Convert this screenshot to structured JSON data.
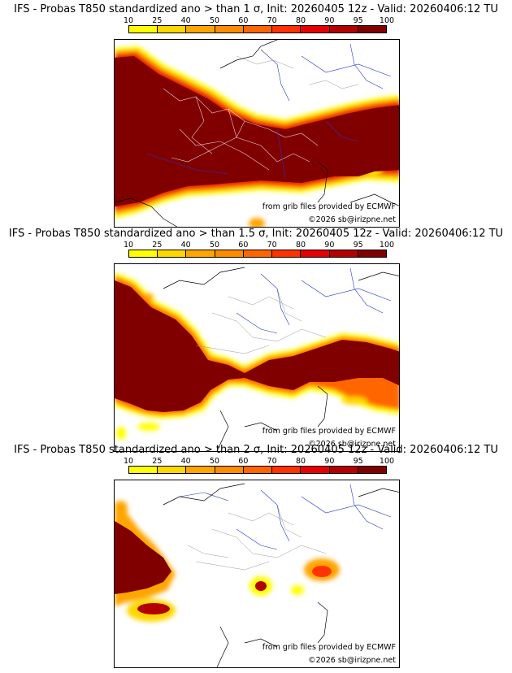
{
  "colorbar": {
    "ticks": [
      "10",
      "25",
      "40",
      "50",
      "60",
      "70",
      "80",
      "90",
      "95",
      "100"
    ],
    "colors": [
      "#ffff00",
      "#ffd700",
      "#ffa500",
      "#ff8c00",
      "#ff6600",
      "#ff3300",
      "#e60000",
      "#b30000",
      "#800000"
    ]
  },
  "credits": {
    "source": "from grib files provided by ECMWF",
    "copyright": "©2026 sb@irizpne.net"
  },
  "panels": [
    {
      "title": "IFS - Probas T850  standardized ano > than 1 σ, Init: 20260405 12z - Valid: 20260406:12 TU"
    },
    {
      "title": "IFS - Probas T850  standardized ano > than 1.5 σ, Init: 20260405 12z - Valid: 20260406:12 TU"
    },
    {
      "title": "IFS - Probas T850  standardized ano > than 2 σ, Init: 20260405 12z - Valid: 20260406:12 TU"
    }
  ]
}
